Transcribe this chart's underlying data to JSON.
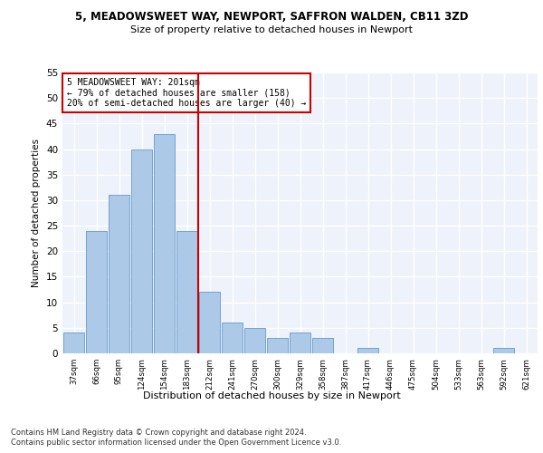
{
  "title1": "5, MEADOWSWEET WAY, NEWPORT, SAFFRON WALDEN, CB11 3ZD",
  "title2": "Size of property relative to detached houses in Newport",
  "xlabel": "Distribution of detached houses by size in Newport",
  "ylabel": "Number of detached properties",
  "categories": [
    "37sqm",
    "66sqm",
    "95sqm",
    "124sqm",
    "154sqm",
    "183sqm",
    "212sqm",
    "241sqm",
    "270sqm",
    "300sqm",
    "329sqm",
    "358sqm",
    "387sqm",
    "417sqm",
    "446sqm",
    "475sqm",
    "504sqm",
    "533sqm",
    "563sqm",
    "592sqm",
    "621sqm"
  ],
  "values": [
    4,
    24,
    31,
    40,
    43,
    24,
    12,
    6,
    5,
    3,
    4,
    3,
    0,
    1,
    0,
    0,
    0,
    0,
    0,
    1,
    0
  ],
  "bar_color": "#adc9e8",
  "bar_edge_color": "#6699cc",
  "vline_x": 5.5,
  "vline_color": "#cc0000",
  "annotation_text": "5 MEADOWSWEET WAY: 201sqm\n← 79% of detached houses are smaller (158)\n20% of semi-detached houses are larger (40) →",
  "annotation_box_edge": "#cc0000",
  "ylim": [
    0,
    55
  ],
  "yticks": [
    0,
    5,
    10,
    15,
    20,
    25,
    30,
    35,
    40,
    45,
    50,
    55
  ],
  "background_color": "#edf2fb",
  "grid_color": "#ffffff",
  "footer1": "Contains HM Land Registry data © Crown copyright and database right 2024.",
  "footer2": "Contains public sector information licensed under the Open Government Licence v3.0."
}
